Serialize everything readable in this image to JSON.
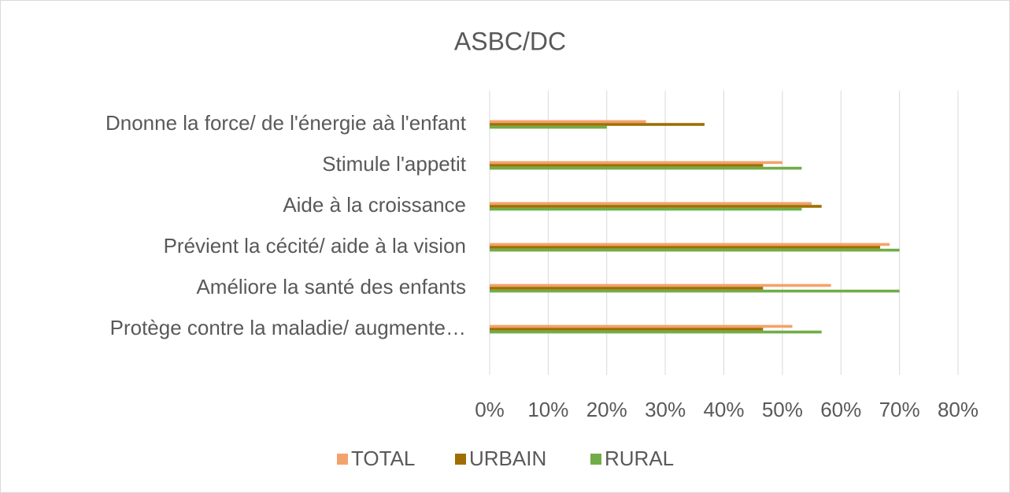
{
  "chart_data": {
    "type": "barh",
    "title": "ASBC/DC",
    "categories": [
      "Dnonne la force/ de l'énergie aà l'enfant",
      "Stimule l'appetit",
      "Aide à la croissance",
      "Prévient la cécité/ aide à la vision",
      "Améliore la santé des enfants",
      "Protège contre la maladie/ augmente…"
    ],
    "series": [
      {
        "name": "TOTAL",
        "color": "#f4a26b",
        "values": [
          26.7,
          50,
          55,
          68.3,
          58.3,
          51.7
        ]
      },
      {
        "name": "URBAIN",
        "color": "#9e6f00",
        "values": [
          36.7,
          46.7,
          56.7,
          66.7,
          46.7,
          46.7
        ]
      },
      {
        "name": "RURAL",
        "color": "#70ad47",
        "values": [
          20,
          53.3,
          53.3,
          70,
          70,
          56.7
        ]
      }
    ],
    "xlim": [
      0,
      80
    ],
    "xticks": [
      {
        "value": 0,
        "label": "0%"
      },
      {
        "value": 10,
        "label": "10%"
      },
      {
        "value": 20,
        "label": "20%"
      },
      {
        "value": 30,
        "label": "30%"
      },
      {
        "value": 40,
        "label": "40%"
      },
      {
        "value": 50,
        "label": "50%"
      },
      {
        "value": 60,
        "label": "60%"
      },
      {
        "value": 70,
        "label": "70%"
      },
      {
        "value": 80,
        "label": "80%"
      }
    ],
    "grid": true,
    "legend": "bottom"
  }
}
